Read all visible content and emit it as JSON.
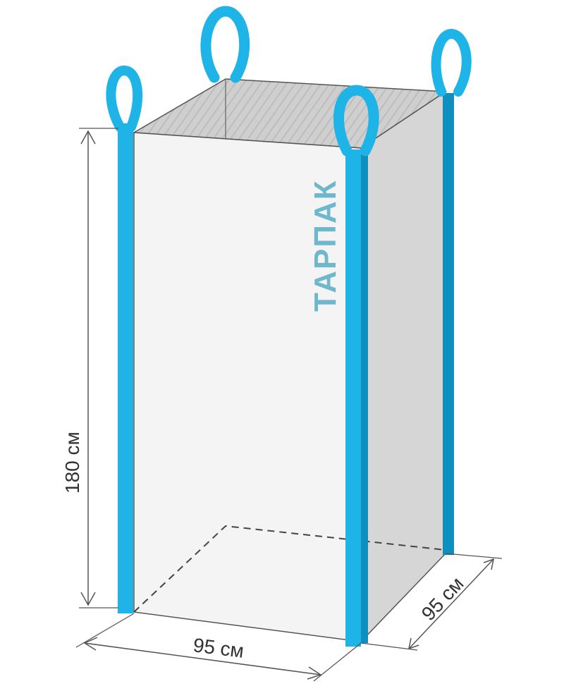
{
  "dimensions": {
    "height_label": "180 см",
    "width_label": "95 см",
    "depth_label": "95 см"
  },
  "brand": {
    "name": "ТАРПАК",
    "color": "#6fb7cc"
  },
  "colors": {
    "strap_front": "#1eb4e8",
    "strap_side": "#0e8fbf",
    "bag_front": "#f4f4f4",
    "bag_side": "#d6d6d6",
    "bag_top": "#c9c9c9",
    "outline": "#444444"
  }
}
